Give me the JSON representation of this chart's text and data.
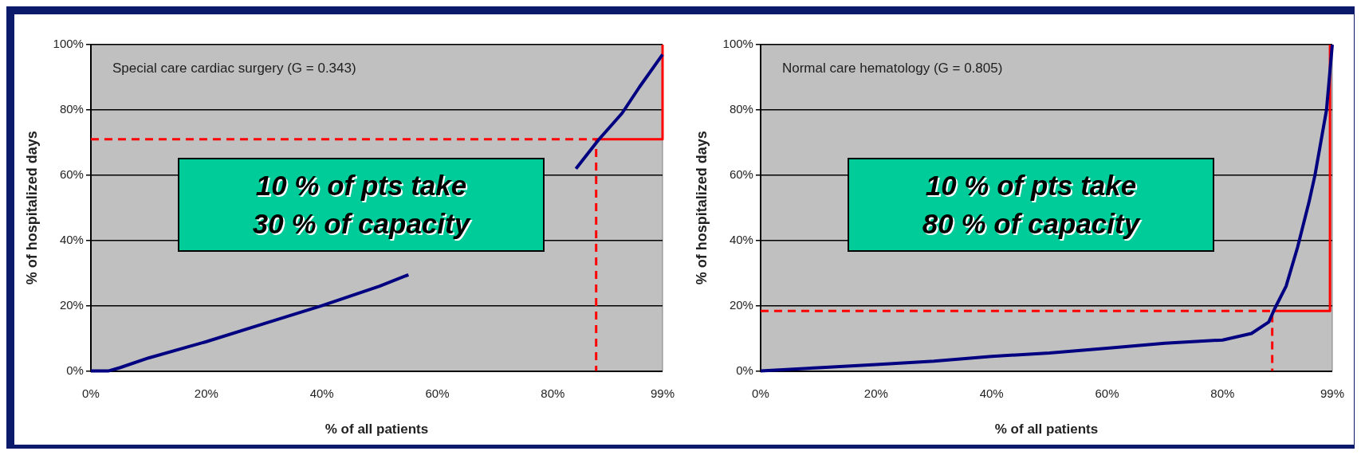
{
  "chart_data": [
    {
      "type": "line",
      "title": "Special care cardiac surgery (G = 0.343)",
      "xlabel": "% of all patients",
      "ylabel": "% of hospitalized days",
      "xlim": [
        0,
        99
      ],
      "ylim": [
        0,
        100
      ],
      "xticks": [
        {
          "value": 0,
          "label": "0%"
        },
        {
          "value": 20,
          "label": "20%"
        },
        {
          "value": 40,
          "label": "40%"
        },
        {
          "value": 60,
          "label": "60%"
        },
        {
          "value": 80,
          "label": "80%"
        },
        {
          "value": 99,
          "label": "99%"
        }
      ],
      "yticks": [
        {
          "value": 0,
          "label": "0%"
        },
        {
          "value": 20,
          "label": "20%"
        },
        {
          "value": 40,
          "label": "40%"
        },
        {
          "value": 60,
          "label": "60%"
        },
        {
          "value": 80,
          "label": "80%"
        },
        {
          "value": 100,
          "label": "100%"
        }
      ],
      "grid": "y",
      "marker": "none",
      "annotations": [
        "10 % of pts take\n30 % of capacity"
      ],
      "series": [
        {
          "color": "#000080",
          "x": [
            0,
            3,
            5,
            10,
            20,
            30,
            40,
            50,
            55,
            60,
            70,
            80,
            84,
            88,
            92,
            95,
            99
          ],
          "values": [
            0,
            0,
            1,
            4,
            9,
            14.5,
            20,
            26,
            29.5,
            null,
            null,
            null,
            62,
            71,
            79,
            87,
            97
          ]
        },
        {
          "color": "#ff0000",
          "line_style": "dashed",
          "x": [
            0,
            87.5,
            87.5
          ],
          "values": [
            71,
            71,
            0
          ]
        },
        {
          "color": "#ff0000",
          "line_style": "solid",
          "x": [
            87.5,
            99,
            99
          ],
          "values": [
            71,
            71,
            100
          ]
        }
      ]
    },
    {
      "type": "line",
      "title": "Normal care hematology (G = 0.805)",
      "xlabel": "% of all patients",
      "ylabel": "% of hospitalized days",
      "xlim": [
        0,
        99
      ],
      "ylim": [
        0,
        100
      ],
      "xticks": [
        {
          "value": 0,
          "label": "0%"
        },
        {
          "value": 20,
          "label": "20%"
        },
        {
          "value": 40,
          "label": "40%"
        },
        {
          "value": 60,
          "label": "60%"
        },
        {
          "value": 80,
          "label": "80%"
        },
        {
          "value": 99,
          "label": "99%"
        }
      ],
      "yticks": [
        {
          "value": 0,
          "label": "0%"
        },
        {
          "value": 20,
          "label": "20%"
        },
        {
          "value": 40,
          "label": "40%"
        },
        {
          "value": 60,
          "label": "60%"
        },
        {
          "value": 80,
          "label": "80%"
        },
        {
          "value": 100,
          "label": "100%"
        }
      ],
      "grid": "y",
      "marker": "none",
      "annotations": [
        "10 % of pts take\n80 % of capacity"
      ],
      "series": [
        {
          "color": "#000080",
          "x": [
            0,
            10,
            20,
            30,
            40,
            50,
            60,
            70,
            80,
            85,
            88,
            89,
            91,
            93,
            95,
            96,
            97,
            98,
            99
          ],
          "values": [
            0,
            1,
            2,
            3,
            4.5,
            5.5,
            7,
            8.5,
            9.5,
            11.5,
            15,
            19,
            26,
            38,
            52,
            60,
            70,
            80,
            100
          ]
        },
        {
          "color": "#ff0000",
          "line_style": "dashed",
          "x": [
            0,
            88.6,
            88.6
          ],
          "values": [
            18.4,
            18.4,
            0
          ]
        },
        {
          "color": "#ff0000",
          "line_style": "solid",
          "x": [
            88.6,
            98.6,
            98.6
          ],
          "values": [
            18.4,
            18.4,
            100
          ]
        }
      ]
    }
  ]
}
